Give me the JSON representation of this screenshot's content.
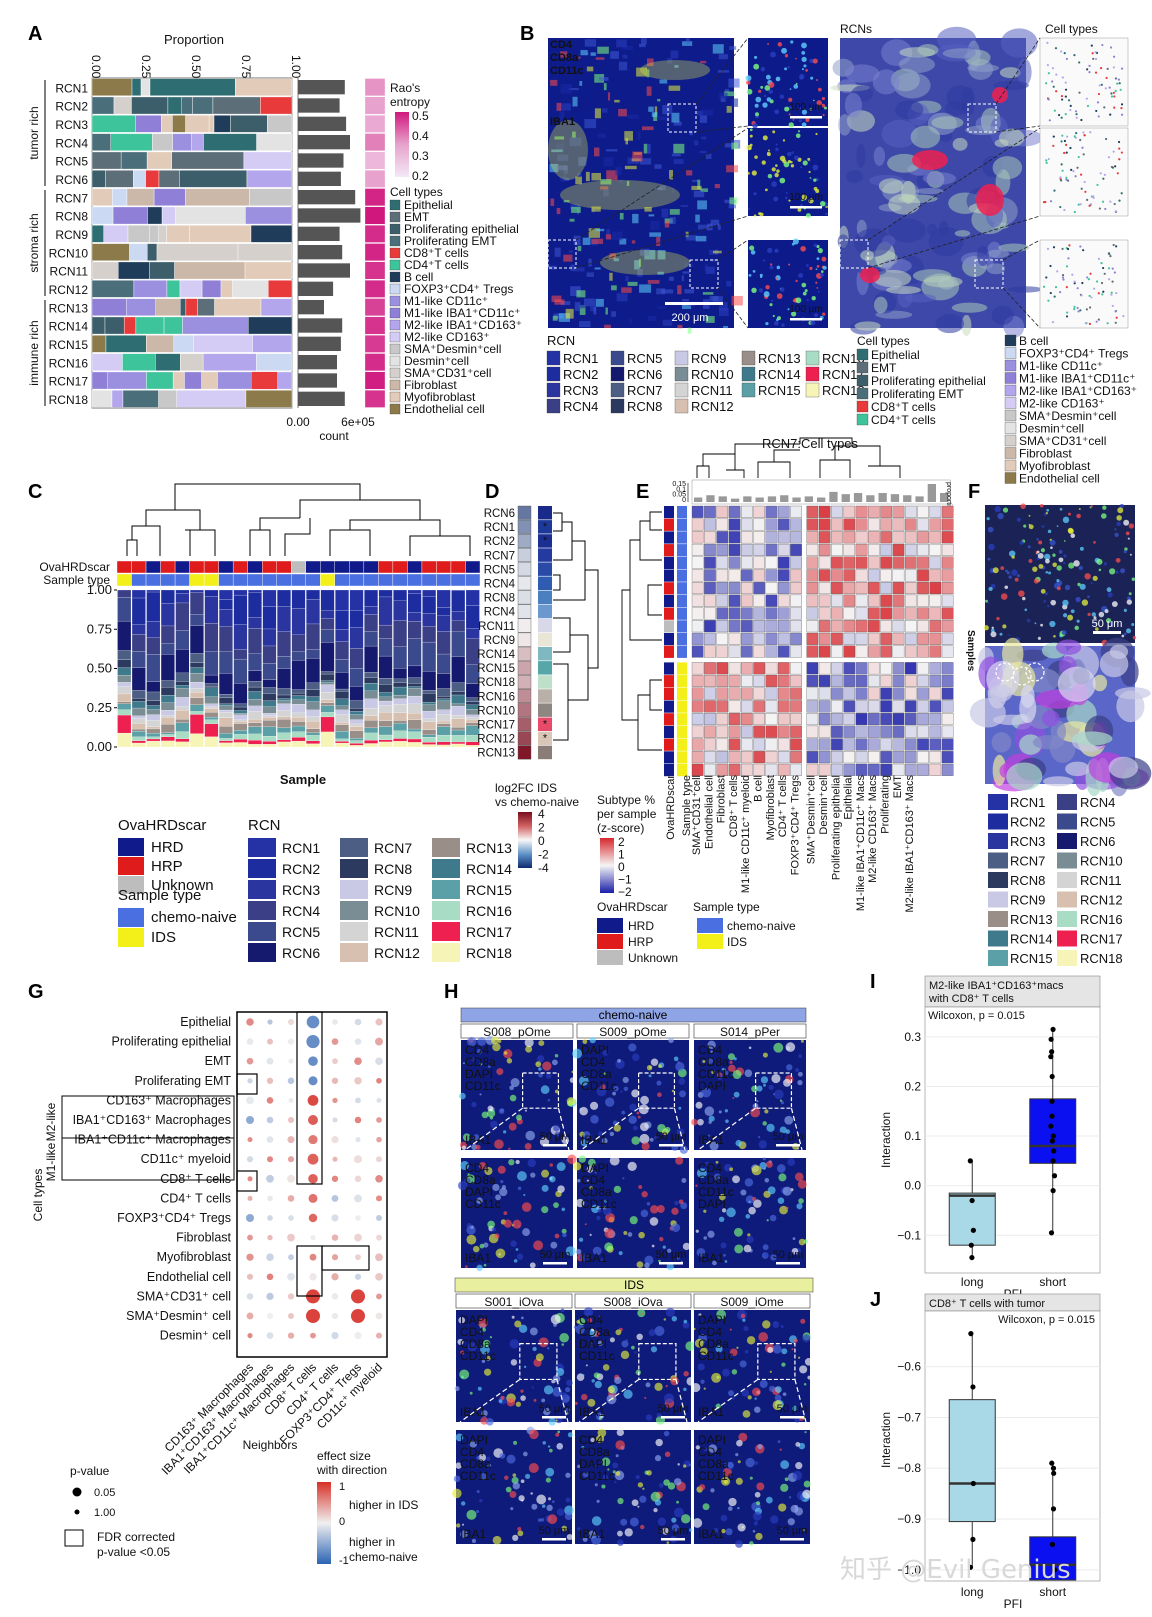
{
  "panel_letters": [
    "A",
    "B",
    "C",
    "D",
    "E",
    "F",
    "G",
    "H",
    "I",
    "J"
  ],
  "colors": {
    "RCN1": "#2432a6",
    "RCN2": "#1d2da0",
    "RCN3": "#2b35a0",
    "RCN4": "#3a3f86",
    "RCN5": "#3b4a8c",
    "RCN6": "#151a6e",
    "RCN7": "#4d5e84",
    "RCN8": "#2c3a60",
    "RCN9": "#c9c9e6",
    "RCN10": "#7a8c94",
    "RCN11": "#d4d4d4",
    "RCN12": "#d8c0b0",
    "RCN13": "#9a8e88",
    "RCN14": "#3f7a8c",
    "RCN15": "#5aa0a6",
    "RCN16": "#a9dcc4",
    "RCN17": "#ee2050",
    "RCN18": "#f7f4b8",
    "HRD": "#111a8a",
    "HRP": "#e01b1b",
    "Unknown": "#bdbdbd",
    "chemo_naive": "#4a6fe0",
    "IDS": "#f2ef19"
  },
  "panel_a": {
    "axis_title": "Proportion",
    "ticks": [
      "0.00",
      "0.25",
      "0.50",
      "0.75",
      "1.00"
    ],
    "group_labels": [
      "tumor rich",
      "stroma rich",
      "immune rich"
    ],
    "rows": [
      "RCN1",
      "RCN2",
      "RCN3",
      "RCN4",
      "RCN5",
      "RCN6",
      "RCN7",
      "RCN8",
      "RCN9",
      "RCN10",
      "RCN11",
      "RCN12",
      "RCN13",
      "RCN14",
      "RCN15",
      "RCN16",
      "RCN17",
      "RCN18"
    ],
    "count_label": "count",
    "count_ticks": [
      "0.00",
      "6e+05"
    ],
    "counts": [
      3.6,
      3.2,
      3.7,
      4.0,
      3.5,
      3.3,
      4.4,
      4.8,
      3.2,
      3.4,
      4.0,
      2.7,
      2.0,
      3.4,
      3.3,
      3.0,
      3.0,
      3.6
    ],
    "entropy": [
      0.32,
      0.3,
      0.29,
      0.35,
      0.27,
      0.3,
      0.48,
      0.5,
      0.47,
      0.48,
      0.46,
      0.47,
      0.44,
      0.46,
      0.45,
      0.47,
      0.49,
      0.46
    ],
    "entropy_title": "Rao's\nentropy",
    "entropy_ticks": [
      "0.5",
      "0.4",
      "0.3",
      "0.2"
    ],
    "legend_title": "Cell types",
    "cell_types": [
      "Epithelial",
      "EMT",
      "Proliferating epithelial",
      "Proliferating EMT",
      "CD8⁺T cells",
      "CD4⁺T cells",
      "B cell",
      "FOXP3⁺CD4⁺ Tregs",
      "M1-like CD11c⁺",
      "M1-like IBA1⁺CD11c⁺",
      "M2-like IBA1⁺CD163⁺",
      "M2-like CD163⁺",
      "SMA⁺Desmin⁺cell",
      "Desmin⁺cell",
      "SMA⁺CD31⁺cell",
      "Fibroblast",
      "Myofibroblast",
      "Endothelial cell"
    ],
    "cell_colors": [
      "#2e6e73",
      "#5c6e78",
      "#3b5e6a",
      "#4a6e7a",
      "#e83a3a",
      "#3ec49a",
      "#1f3d5a",
      "#cbd9f2",
      "#9b8fe0",
      "#8f7fd6",
      "#b4a6ec",
      "#d4ccf5",
      "#c8c8c8",
      "#e3e3e3",
      "#d6d0cc",
      "#cbb8a8",
      "#e2cbb8",
      "#8c7a4a"
    ]
  },
  "panel_b": {
    "channels": [
      "CD4",
      "CD8a",
      "CD11c",
      "IBA1"
    ],
    "channel_colors": [
      "#4fd2ff",
      "#ff3030",
      "#59ff59",
      "#f2ef19"
    ],
    "scale_big": "200 μm",
    "scale_small": "100 μm",
    "rcns_title": "RCNs",
    "celltypes_title": "Cell types",
    "rcn_legend_title": "RCN",
    "celltype_legend_title": "Cell types",
    "legend_col1": [
      "Epithelial",
      "EMT",
      "Proliferating epithelial",
      "Proliferating EMT",
      "CD8⁺T cells",
      "CD4⁺T cells"
    ],
    "legend_col2": [
      "B cell",
      "FOXP3⁺CD4⁺ Tregs",
      "M1-like CD11c⁺",
      "M1-like IBA1⁺CD11c⁺",
      "M2-like IBA1⁺CD163⁺",
      "M2-like CD163⁺",
      "SMA⁺Desmin⁺cell",
      "Desmin⁺cell",
      "SMA⁺CD31⁺cell",
      "Fibroblast",
      "Myofibroblast",
      "Endothelial cell"
    ]
  },
  "panel_c": {
    "row1": "OvaHRDscar",
    "row2": "Sample type",
    "y_ticks": [
      "1.00",
      "0.75",
      "0.50",
      "0.25",
      "0.00"
    ],
    "x_title": "Sample",
    "legend1_title": "OvaHRDscar",
    "legend1": [
      "HRD",
      "HRP",
      "Unknown"
    ],
    "legend2_title": "Sample type",
    "legend2": [
      "chemo-naive",
      "IDS"
    ],
    "legend3_title": "RCN",
    "hrd": [
      "HRP",
      "HRP",
      "HRD",
      "HRP",
      "HRD",
      "HRP",
      "HRP",
      "HRD",
      "HRP",
      "HRD",
      "HRP",
      "HRP",
      "Unknown",
      "HRD",
      "HRD",
      "HRD",
      "HRD",
      "HRD",
      "HRP",
      "HRP",
      "HRD",
      "HRP",
      "HRP",
      "HRP",
      "HRD"
    ],
    "stype": [
      "IDS",
      "chemo-naive",
      "chemo-naive",
      "chemo-naive",
      "chemo-naive",
      "IDS",
      "IDS",
      "chemo-naive",
      "chemo-naive",
      "chemo-naive",
      "chemo-naive",
      "chemo-naive",
      "chemo-naive",
      "chemo-naive",
      "IDS",
      "chemo-naive",
      "chemo-naive",
      "chemo-naive",
      "chemo-naive",
      "chemo-naive",
      "chemo-naive",
      "chemo-naive",
      "chemo-naive",
      "chemo-naive",
      "chemo-naive"
    ]
  },
  "panel_d": {
    "rows": [
      "RCN6",
      "RCN1",
      "RCN2",
      "RCN7",
      "RCN5",
      "RCN4",
      "RCN8",
      "RCN4",
      "RCN11",
      "RCN9",
      "RCN14",
      "RCN15",
      "RCN18",
      "RCN16",
      "RCN10",
      "RCN17",
      "RCN12",
      "RCN13"
    ],
    "fc": [
      -2.5,
      -2.0,
      -1.5,
      -0.8,
      -0.6,
      -0.3,
      -0.5,
      -0.4,
      0.2,
      0.3,
      1.0,
      1.4,
      1.2,
      1.8,
      2.2,
      2.6,
      3.0,
      3.8
    ],
    "rhs": [
      "#1a2a8a",
      "#1d3a9a",
      "#1b2f92",
      "#243aa0",
      "#2a4aa8",
      "#2f5cb0",
      "#4a7fc0",
      "#6a98cf",
      "#d8d8e8",
      "#e9e6d8",
      "#7fb8c0",
      "#58a7a8",
      "#bfe0c8",
      "#b9b1a8",
      "#8e8680",
      "#e84a6a",
      "#d9c6b6",
      "#8a7d78"
    ],
    "stars": [
      1,
      2,
      15,
      16
    ],
    "legend_title": "log2FC IDS\nvs chemo-naive",
    "legend_ticks": [
      "4",
      "2",
      "0",
      "-2",
      "-4"
    ]
  },
  "panel_e": {
    "title": "RCN7:Cell types",
    "prop_label": "proportion",
    "prop_ticks": [
      "0.15",
      "0.1",
      "0.05",
      "0"
    ],
    "samples_label": "Samples",
    "col_labels": [
      "SMA⁺CD31⁺cell",
      "Endothelial cell",
      "Fibroblast",
      "CD8⁺ T cells",
      "M1-like CD11c⁺ myeloid",
      "B cell",
      "Myofibroblast",
      "CD4⁺ T cells",
      "FOXP3⁺CD4⁺ Tregs",
      "SMA⁺Desmin⁺cell",
      "Desmin⁺cell",
      "Proliferating epithelial",
      "Epithelial",
      "M1-like IBA1⁺CD11c⁺ Macs",
      "M2-like CD163⁺ Macs",
      "Proliferating",
      "EMT",
      "M2-like IBA1⁺CD163⁺ Macs"
    ],
    "row_ann_labels": [
      "OvaHRDscar",
      "Sample type"
    ],
    "legend_title": "Subtype %\nper sample\n(z-score)",
    "legend_ticks": [
      "2",
      "1",
      "0",
      "−1",
      "−2"
    ],
    "legend2_title": "OvaHRDscar",
    "legend2": [
      "HRD",
      "HRP",
      "Unknown"
    ],
    "legend3_title": "Sample type",
    "legend3": [
      "chemo-naive",
      "IDS"
    ],
    "hrd": [
      "HRD",
      "HRP",
      "HRD",
      "HRP",
      "HRD",
      "HRD",
      "HRP",
      "HRD",
      "HRP",
      "Unknown",
      "HRD",
      "HRP",
      "HRD",
      "HRP",
      "HRP",
      "HRD",
      "HRP",
      "HRD",
      "HRP",
      "HRD",
      "HRD"
    ],
    "stype_split": 12,
    "props": [
      0.04,
      0.06,
      0.05,
      0.03,
      0.05,
      0.04,
      0.05,
      0.06,
      0.04,
      0.05,
      0.04,
      0.09,
      0.07,
      0.08,
      0.06,
      0.08,
      0.07,
      0.06,
      0.05,
      0.16,
      0.08
    ]
  },
  "panel_f": {
    "scale": "50 μm",
    "rcns_col1": [
      "RCN1",
      "RCN2",
      "RCN3",
      "RCN7",
      "RCN8",
      "RCN9",
      "RCN13",
      "RCN14",
      "RCN15"
    ],
    "rcns_col2": [
      "RCN4",
      "RCN5",
      "RCN6",
      "RCN10",
      "RCN11",
      "RCN12",
      "RCN16",
      "RCN17",
      "RCN18"
    ]
  },
  "panel_g": {
    "rows": [
      "Epithelial",
      "Proliferating epithelial",
      "EMT",
      "Proliferating EMT",
      "CD163⁺ Macrophages",
      "IBA1⁺CD163⁺ Macrophages",
      "IBA1⁺CD11c⁺ Macrophages",
      "CD11c⁺ myeloid",
      "CD8⁺ T cells",
      "CD4⁺ T cells",
      "FOXP3⁺CD4⁺ Tregs",
      "Fibroblast",
      "Myofibroblast",
      "Endothelial cell",
      "SMA⁺CD31⁺ cell",
      "SMA⁺Desmin⁺ cell",
      "Desmin⁺ cell"
    ],
    "cols": [
      "CD163⁺ Macrophages",
      "IBA1⁺CD163⁺ Macrophages",
      "IBA1⁺CD11c⁺ Macrophages",
      "CD8⁺ T cells",
      "CD4⁺ T cells",
      "FOXP3⁺CD4⁺ Tregs",
      "CD11c⁺ myeloid"
    ],
    "y_title": "Cell types",
    "x_title": "Neighbors",
    "m2_label": "M2-like",
    "m1_label": "M1-like",
    "size_title": "p-value",
    "size_ticks": [
      "0.05",
      "1.00"
    ],
    "fdr_label": "FDR corrected\np-value <0.05",
    "color_title": "effect size\nwith direction",
    "color_ticks": [
      "1",
      "0",
      "-1"
    ],
    "higher_ids": "higher in IDS",
    "higher_naive": "higher in\nchemo-naive"
  },
  "panel_h": {
    "top_band": "chemo-naive",
    "bottom_band": "IDS",
    "top_samples": [
      "S008_pOme",
      "S009_pOme",
      "S014_pPer"
    ],
    "bottom_samples": [
      "S001_iOva",
      "S008_iOva",
      "S009_iOme"
    ],
    "scale": "50 μm",
    "channels": [
      "CD4",
      "CD8a",
      "DAPI",
      "CD11c",
      "IBA1"
    ]
  },
  "panel_i": {
    "title": "M2-like IBA1⁺CD163⁺macs\nwith CD8⁺ T cells",
    "stat": "Wilcoxon, p = 0.015",
    "y_title": "Interaction",
    "x_title": "PFI",
    "categories": [
      "long",
      "short"
    ],
    "y_ticks": [
      "0.3",
      "0.2",
      "0.1",
      "0.0",
      "−0.1"
    ],
    "ylim": [
      -0.17,
      0.34
    ],
    "long": {
      "q1": -0.12,
      "med": -0.02,
      "q3": -0.015,
      "wlo": -0.145,
      "whi": 0.05,
      "pts": [
        -0.145,
        -0.12,
        -0.09,
        -0.03,
        0.05
      ]
    },
    "short": {
      "q1": 0.045,
      "med": 0.08,
      "q3": 0.175,
      "wlo": -0.095,
      "whi": 0.315,
      "pts": [
        0.315,
        0.295,
        0.27,
        0.26,
        0.22,
        0.17,
        0.14,
        0.12,
        0.1,
        0.09,
        0.07,
        0.05,
        0.02,
        -0.01,
        -0.095
      ]
    }
  },
  "panel_j": {
    "title": "CD8⁺ T cells with tumor",
    "stat": "Wilcoxon, p = 0.015",
    "y_title": "Interaction",
    "x_title": "PFI",
    "categories": [
      "long",
      "short"
    ],
    "y_ticks": [
      "−0.6",
      "−0.7",
      "−0.8",
      "−0.9",
      "−1.0"
    ],
    "ylim": [
      -1.02,
      -0.52
    ],
    "long": {
      "q1": -0.905,
      "med": -0.83,
      "q3": -0.665,
      "wlo": -0.995,
      "whi": -0.535,
      "pts": [
        -0.535,
        -0.64,
        -0.83,
        -0.94,
        -0.995
      ]
    },
    "short": {
      "q1": -1.02,
      "med": -0.99,
      "q3": -0.935,
      "wlo": -1.02,
      "whi": -0.79,
      "pts": [
        -0.79,
        -0.8,
        -0.81,
        -0.88,
        -0.95,
        -1.0
      ]
    }
  },
  "watermark": "知乎 @Evil Genius"
}
